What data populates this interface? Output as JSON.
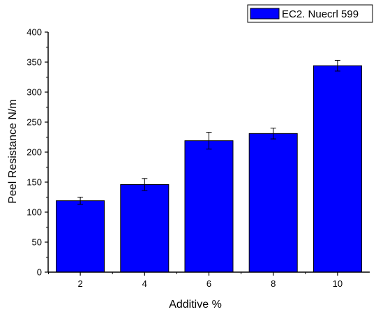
{
  "chart_data": {
    "type": "bar",
    "title": "",
    "xlabel": "Additive %",
    "ylabel": "Peel Resistance N/m",
    "categories": [
      "2",
      "4",
      "6",
      "8",
      "10"
    ],
    "series": [
      {
        "name": "EC2. Nuecrl 599",
        "values": [
          119,
          146,
          219,
          231,
          344
        ],
        "errors": [
          6,
          10,
          14,
          9,
          9
        ]
      }
    ],
    "ylim": [
      0,
      400
    ],
    "yticks": [
      "0",
      "50",
      "100",
      "150",
      "200",
      "250",
      "300",
      "350",
      "400"
    ],
    "grid": false,
    "legend_position": "top-right",
    "colors": {
      "bar_fill": "#0000ff",
      "bar_stroke": "#000000",
      "axis": "#000000"
    }
  }
}
